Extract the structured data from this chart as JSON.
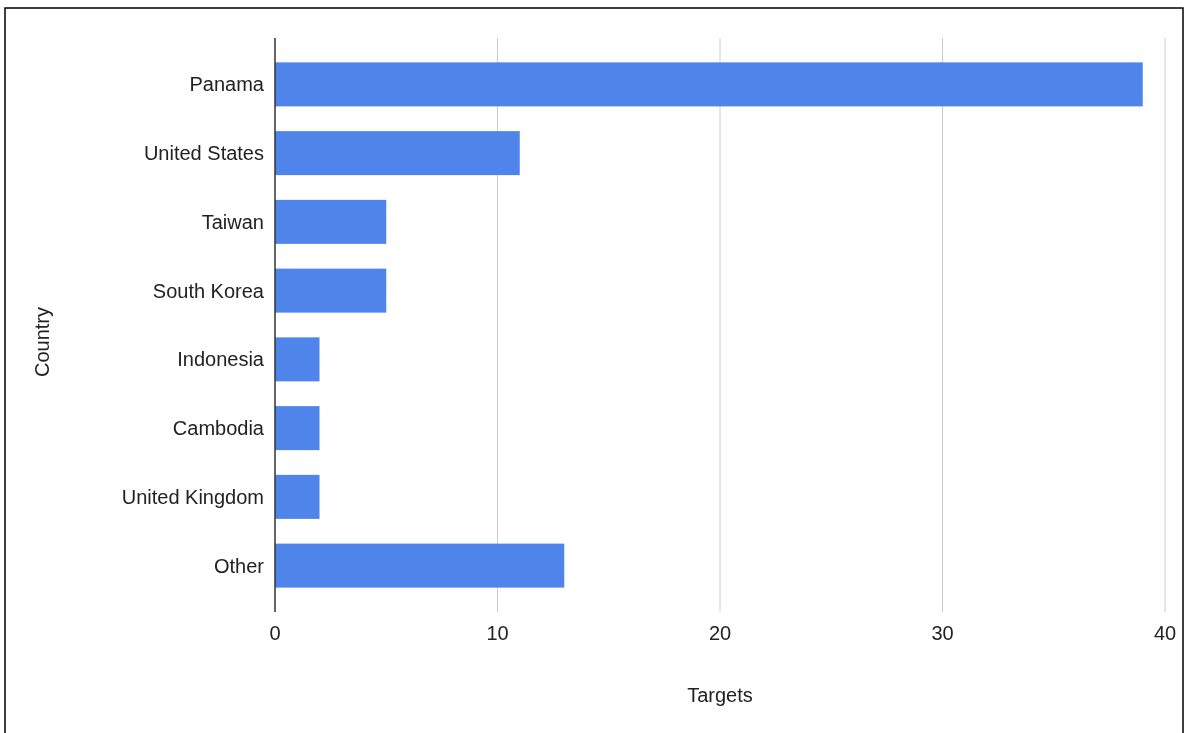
{
  "chart_data": {
    "type": "bar",
    "orientation": "horizontal",
    "xlabel": "Targets",
    "ylabel": "Country",
    "categories": [
      "Panama",
      "United States",
      "Taiwan",
      "South Korea",
      "Indonesia",
      "Cambodia",
      "United Kingdom",
      "Other"
    ],
    "values": [
      39,
      11,
      5,
      5,
      2,
      2,
      2,
      13
    ],
    "color": "#4f84ea",
    "xlim": [
      0,
      40
    ],
    "xticks": [
      0,
      10,
      20,
      30,
      40
    ],
    "grid": "x"
  }
}
